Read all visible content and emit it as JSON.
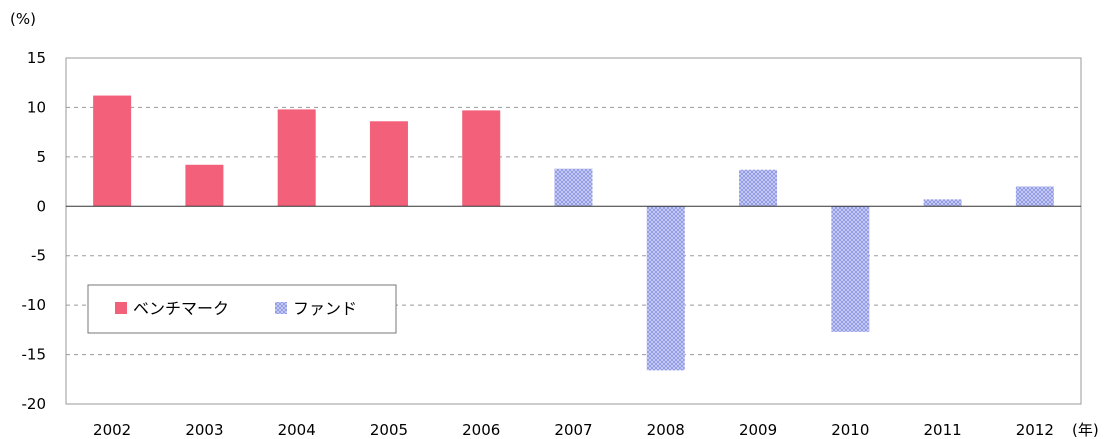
{
  "chart_data": {
    "type": "bar",
    "title": "",
    "ylabel": "(%)",
    "xlabel": "(年)",
    "ylim": [
      -20,
      15
    ],
    "yticks": [
      15,
      10,
      5,
      0,
      -5,
      -10,
      -15,
      -20
    ],
    "categories": [
      "2002",
      "2003",
      "2004",
      "2005",
      "2006",
      "2007",
      "2008",
      "2009",
      "2010",
      "2011",
      "2012"
    ],
    "values": [
      11.2,
      4.2,
      9.8,
      8.6,
      9.7,
      3.8,
      -16.6,
      3.7,
      -12.7,
      0.7,
      2.0
    ],
    "series": [
      {
        "name": "ベンチマーク",
        "color": "#f2607a",
        "categories": [
          "2002",
          "2003",
          "2004",
          "2005",
          "2006"
        ]
      },
      {
        "name": "ファンド",
        "color": "#a9b0ee",
        "pattern": "crosshatch",
        "categories": [
          "2007",
          "2008",
          "2009",
          "2010",
          "2011",
          "2012"
        ]
      }
    ],
    "legend_position": "lower-left",
    "grid": true
  }
}
